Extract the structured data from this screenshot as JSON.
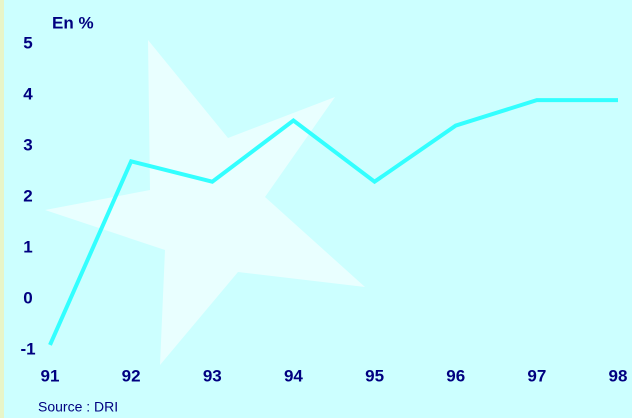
{
  "chart_data": {
    "type": "line",
    "y_label": "En %",
    "source": "Source : DRI",
    "categories": [
      "91",
      "92",
      "93",
      "94",
      "95",
      "96",
      "97",
      "98"
    ],
    "series": [
      {
        "name": null,
        "color": "#33ffff",
        "values": [
          -0.9,
          2.7,
          2.3,
          3.5,
          2.3,
          3.4,
          3.9,
          3.9
        ]
      }
    ],
    "ylim": [
      -1,
      5
    ],
    "yticks": [
      -1,
      0,
      1,
      2,
      3,
      4,
      5
    ],
    "grid": false
  }
}
